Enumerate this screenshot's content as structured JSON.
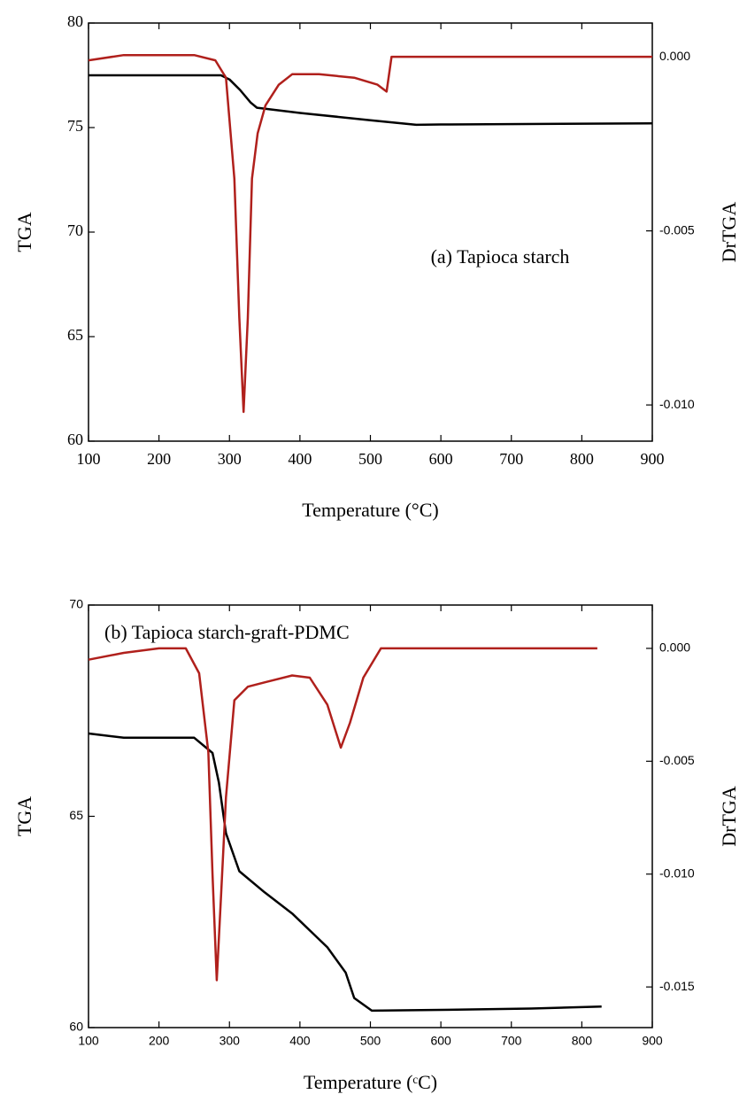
{
  "chart_data": [
    {
      "type": "line",
      "annotation": "(a) Tapioca starch",
      "xlabel": "Temperature (°C)",
      "ylabel": "TGA",
      "y2label": "DrTGA",
      "xlim": [
        100,
        900
      ],
      "xticks": [
        100,
        200,
        300,
        400,
        500,
        600,
        700,
        800,
        900
      ],
      "ylim": [
        60,
        80
      ],
      "yticks": [
        60,
        65,
        70,
        75,
        80
      ],
      "y2lim": [
        -0.01104,
        0.00097
      ],
      "y2ticks": [
        {
          "value": 0,
          "label": "0.000"
        },
        {
          "value": -0.005,
          "label": "-0.005"
        },
        {
          "value": -0.01,
          "label": "-0.010"
        }
      ],
      "series": [
        {
          "color": "#000000",
          "x": [
            100,
            200,
            288,
            300,
            315,
            330,
            339,
            400,
            500,
            565,
            600,
            900
          ],
          "values": [
            77.5,
            77.5,
            77.5,
            77.3,
            76.8,
            76.2,
            75.95,
            75.7,
            75.35,
            75.13,
            75.15,
            75.2
          ]
        },
        {
          "color": "#b0201c",
          "axis": "y2",
          "x": [
            100,
            150,
            250,
            280,
            295,
            307,
            314,
            320,
            326,
            332,
            340,
            351,
            370,
            389,
            427,
            477,
            510,
            523,
            530,
            600,
            900
          ],
          "values": [
            -0.0001,
            5e-05,
            5e-05,
            -0.0001,
            -0.0006,
            -0.0035,
            -0.0075,
            -0.0102,
            -0.0075,
            -0.0035,
            -0.0022,
            -0.0014,
            -0.0008,
            -0.0005,
            -0.0005,
            -0.0006,
            -0.0008,
            -0.001,
            0,
            0,
            0
          ]
        }
      ]
    },
    {
      "type": "line",
      "annotation": "(b) Tapioca starch-graft-PDMC",
      "xlabel": "Temperature (ᶜC)",
      "ylabel": "TGA",
      "y2label": "DrTGA",
      "xlim": [
        100,
        900
      ],
      "xticks": [
        100,
        200,
        300,
        400,
        500,
        600,
        700,
        800,
        900
      ],
      "ylim": [
        60,
        70
      ],
      "yticks": [
        60,
        65,
        70
      ],
      "y2lim": [
        -0.0168,
        0.00192
      ],
      "y2ticks": [
        {
          "value": 0,
          "label": "0.000"
        },
        {
          "value": -0.005,
          "label": "-0.005"
        },
        {
          "value": -0.01,
          "label": "-0.010"
        },
        {
          "value": -0.015,
          "label": "-0.015"
        }
      ],
      "series": [
        {
          "color": "#000000",
          "x": [
            100,
            150,
            250,
            276,
            285,
            295,
            314,
            350,
            389,
            439,
            465,
            477,
            502,
            600,
            728,
            828
          ],
          "values": [
            66.96,
            66.86,
            66.86,
            66.5,
            65.8,
            64.6,
            63.7,
            63.2,
            62.7,
            61.9,
            61.3,
            60.7,
            60.4,
            60.42,
            60.45,
            60.5
          ]
        },
        {
          "color": "#b0201c",
          "axis": "y2",
          "x": [
            100,
            150,
            200,
            238,
            257,
            270,
            276,
            282,
            288,
            295,
            307,
            326,
            351,
            389,
            414,
            439,
            458,
            471,
            490,
            515,
            600,
            822
          ],
          "values": [
            -0.0005,
            -0.0002,
            0,
            0,
            -0.0011,
            -0.0046,
            -0.01,
            -0.0147,
            -0.011,
            -0.0066,
            -0.0023,
            -0.0017,
            -0.0015,
            -0.0012,
            -0.0013,
            -0.0025,
            -0.0044,
            -0.0033,
            -0.0013,
            0,
            0,
            0
          ]
        }
      ]
    }
  ]
}
